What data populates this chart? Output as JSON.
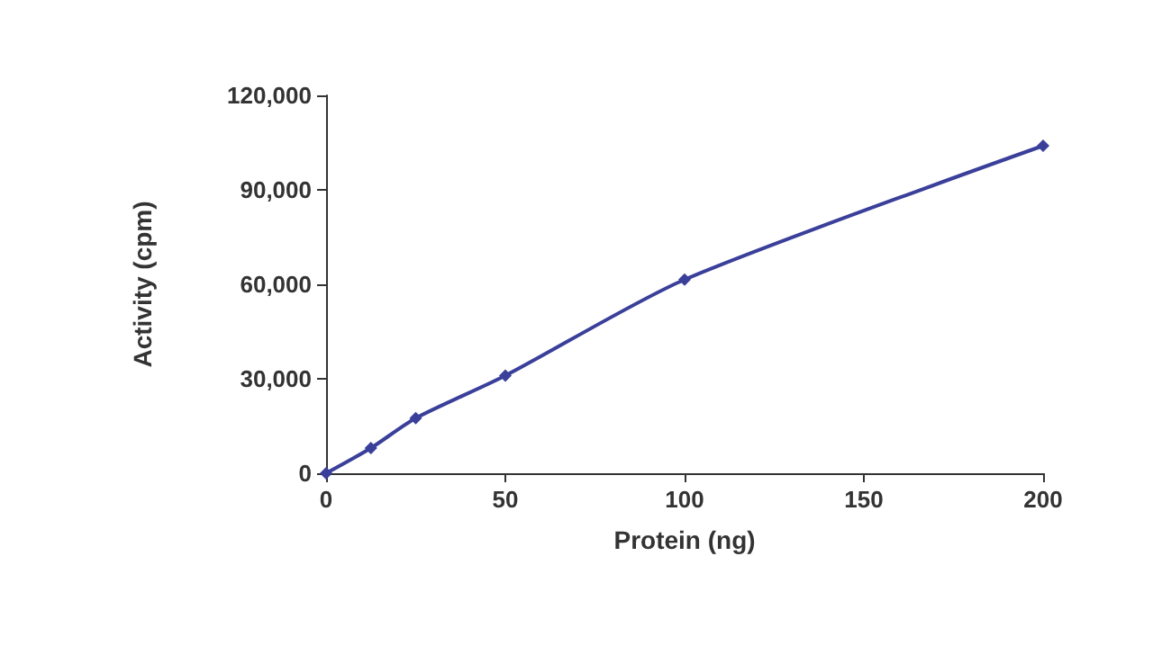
{
  "chart_data": {
    "type": "line",
    "xlabel": "Protein (ng)",
    "ylabel": "Activity (cpm)",
    "x": [
      0,
      12.5,
      25,
      50,
      100,
      200
    ],
    "series": [
      {
        "color": "#3a3f9a",
        "values": [
          0,
          8000,
          17500,
          31000,
          61500,
          104000
        ]
      }
    ],
    "xlim": [
      0,
      200
    ],
    "xticks": [
      0,
      50,
      100,
      150,
      200
    ],
    "ylim": [
      0,
      120000
    ],
    "yticks": [
      {
        "value": 0,
        "label": "0"
      },
      {
        "value": 30000,
        "label": "30,000"
      },
      {
        "value": 60000,
        "label": "60,000"
      },
      {
        "value": 90000,
        "label": "90,000"
      },
      {
        "value": 120000,
        "label": "120,000"
      }
    ],
    "grid": false,
    "marker": "diamond",
    "line_style": "solid"
  }
}
